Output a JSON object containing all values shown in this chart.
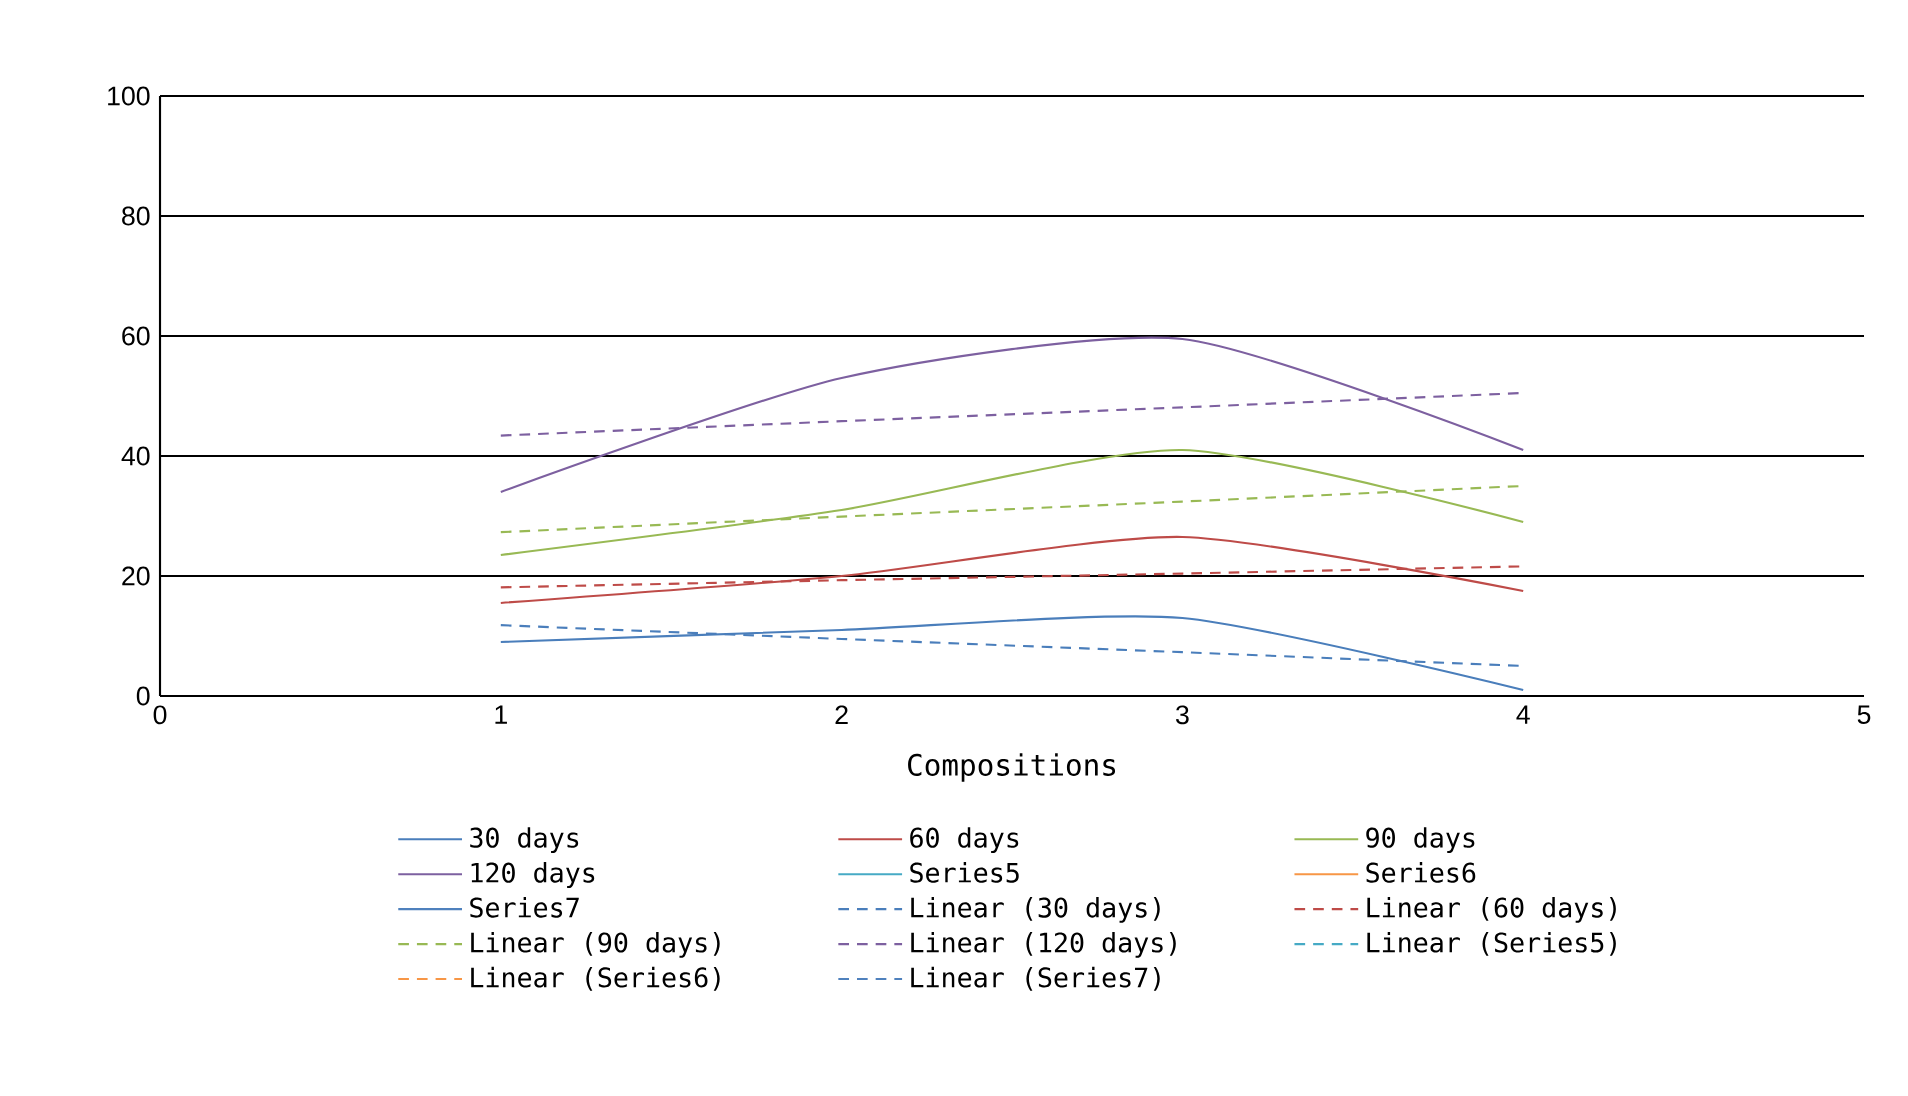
{
  "chart_data": {
    "type": "line",
    "xlabel": "Compositions",
    "x": [
      1,
      2,
      3,
      4
    ],
    "xlim": [
      0,
      5
    ],
    "xticks": [
      0,
      1,
      2,
      3,
      4,
      5
    ],
    "ylim": [
      0,
      100
    ],
    "yticks": [
      0,
      20,
      40,
      60,
      80,
      100
    ],
    "grid": "y",
    "legend": "bottom",
    "series": [
      {
        "name": "30 days",
        "color": "#4a7ebb",
        "values": [
          9,
          11,
          13,
          1
        ]
      },
      {
        "name": "60 days",
        "color": "#be4b48",
        "values": [
          15.5,
          20,
          26.5,
          17.5
        ]
      },
      {
        "name": "90 days",
        "color": "#98b954",
        "values": [
          23.5,
          31,
          41,
          29
        ]
      },
      {
        "name": "120 days",
        "color": "#7d60a0",
        "values": [
          34,
          53,
          59.5,
          41
        ]
      },
      {
        "name": "Series5",
        "color": "#46aac5",
        "values": [
          null,
          null,
          null,
          null
        ]
      },
      {
        "name": "Series6",
        "color": "#f79646",
        "values": [
          null,
          null,
          null,
          null
        ]
      },
      {
        "name": "Series7",
        "color": "#4f81bd",
        "values": [
          null,
          null,
          null,
          null
        ]
      },
      {
        "name": "Linear (30 days)",
        "color": "#4a7ebb",
        "values": [
          11.8,
          9.5,
          7.3,
          5
        ],
        "line_style": "dashed"
      },
      {
        "name": "Linear (60 days)",
        "color": "#be4b48",
        "values": [
          18.1,
          19.3,
          20.4,
          21.6
        ],
        "line_style": "dashed"
      },
      {
        "name": "Linear (90 days)",
        "color": "#98b954",
        "values": [
          27.3,
          29.9,
          32.4,
          35
        ],
        "line_style": "dashed"
      },
      {
        "name": "Linear (120 days)",
        "color": "#7d60a0",
        "values": [
          43.4,
          45.8,
          48.1,
          50.5
        ],
        "line_style": "dashed"
      },
      {
        "name": "Linear (Series5)",
        "color": "#46aac5",
        "values": [
          null,
          null,
          null,
          null
        ],
        "line_style": "dashed"
      },
      {
        "name": "Linear (Series6)",
        "color": "#f79646",
        "values": [
          null,
          null,
          null,
          null
        ],
        "line_style": "dashed"
      },
      {
        "name": "Linear (Series7)",
        "color": "#4f81bd",
        "values": [
          null,
          null,
          null,
          null
        ],
        "line_style": "dashed"
      }
    ]
  }
}
